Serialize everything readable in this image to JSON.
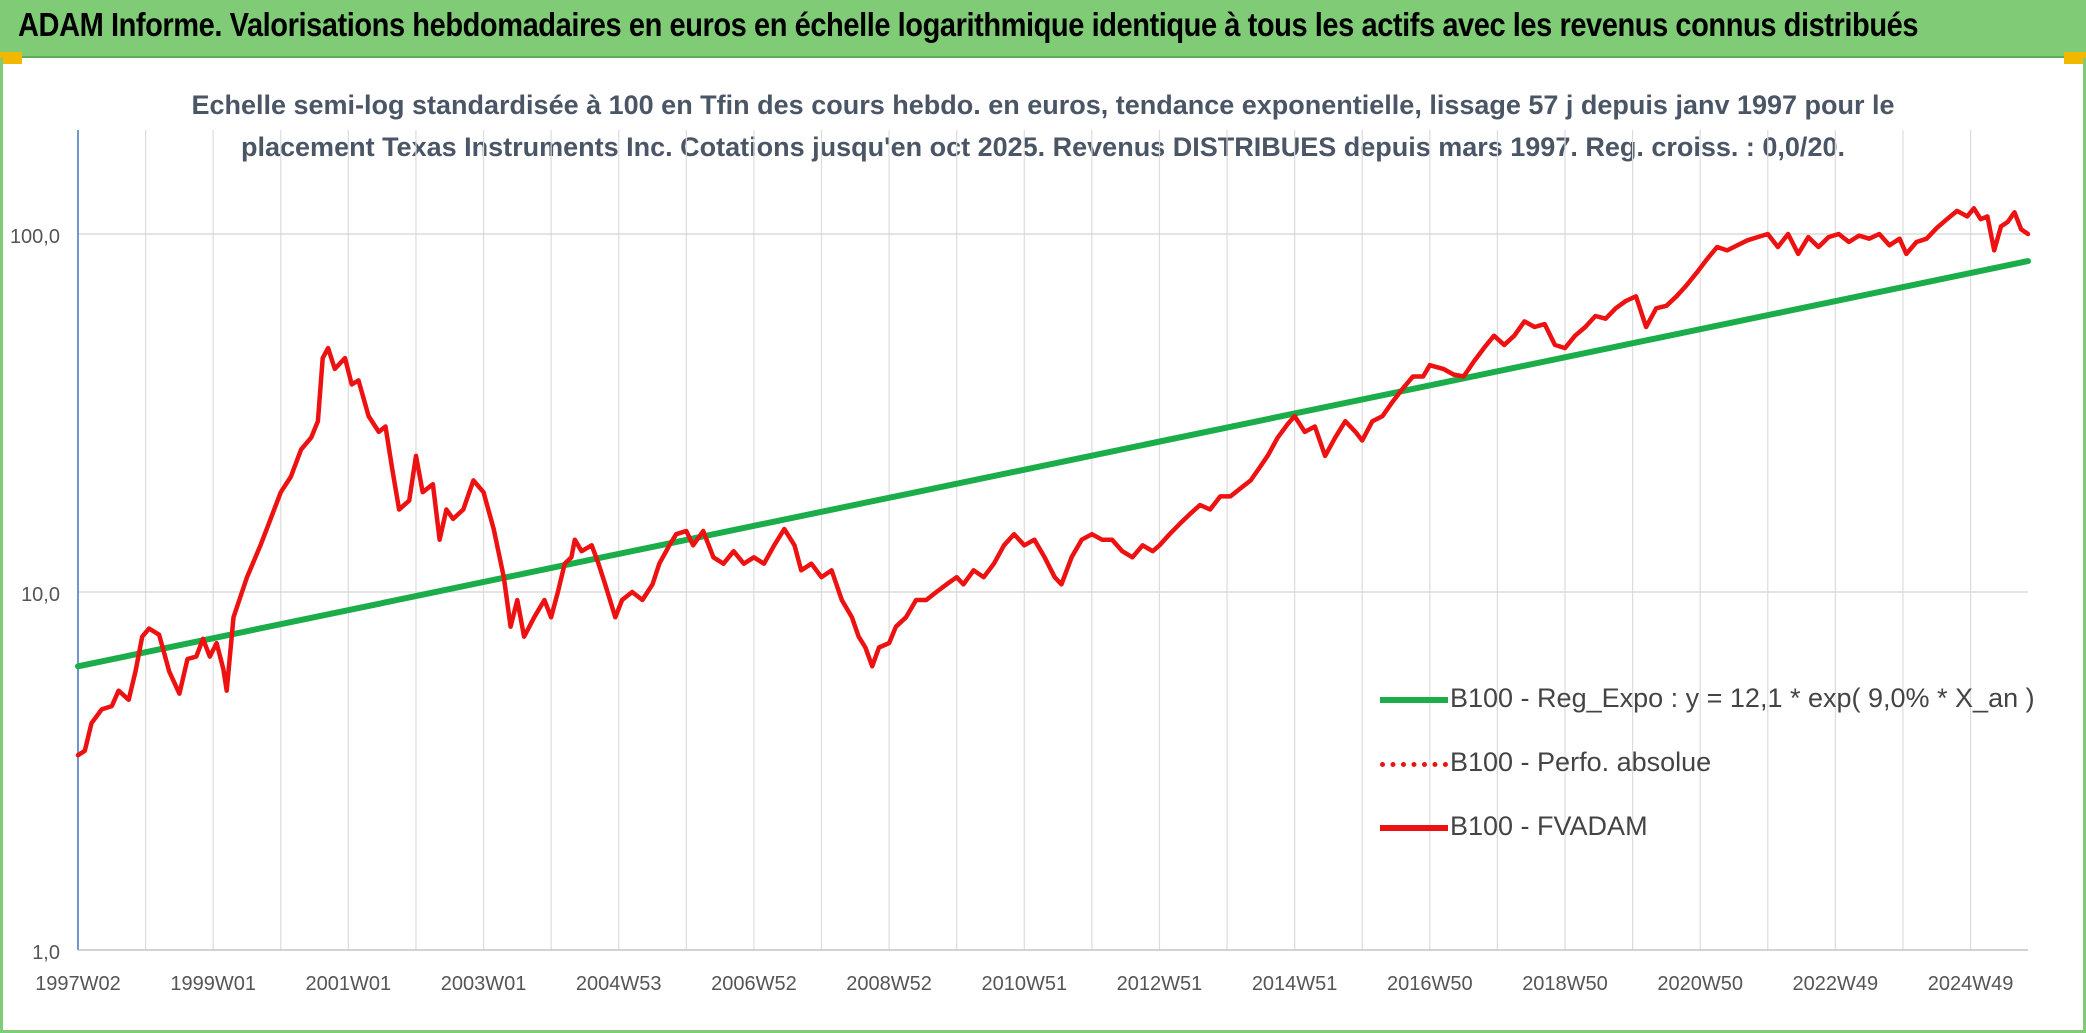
{
  "header": {
    "title": "ADAM Informe. Valorisations hebdomadaires en euros en échelle logarithmique identique à tous les actifs avec les revenus connus distribués"
  },
  "colors": {
    "header_bg": "#7fcb76",
    "regression": "#1aad4a",
    "fvadam": "#ee1111",
    "perfo": "#ee1111"
  },
  "chart_data": {
    "type": "line",
    "title_line1": "Echelle semi-log standardisée à 100 en Tfin des cours hebdo. en euros, tendance exponentielle, lissage 57 j depuis janv 1997 pour le",
    "title_line2": "placement Texas Instruments Inc. Cotations jusqu'en oct 2025. Revenus DISTRIBUES depuis mars 1997. Reg. croiss. : 0,0/20.",
    "y_scale": "log",
    "ylim": [
      1,
      200
    ],
    "y_ticks": [
      {
        "value": 1,
        "label": "1,0"
      },
      {
        "value": 10,
        "label": "10,0"
      },
      {
        "value": 100,
        "label": "100,0"
      }
    ],
    "xlim": [
      1997.0,
      2025.85
    ],
    "x_ticks": [
      {
        "x": 1997.0,
        "label": "1997W02"
      },
      {
        "x": 1999.0,
        "label": "1999W01"
      },
      {
        "x": 2001.0,
        "label": "2001W01"
      },
      {
        "x": 2003.0,
        "label": "2003W01"
      },
      {
        "x": 2005.0,
        "label": "2004W53"
      },
      {
        "x": 2007.0,
        "label": "2006W52"
      },
      {
        "x": 2009.0,
        "label": "2008W52"
      },
      {
        "x": 2011.0,
        "label": "2010W51"
      },
      {
        "x": 2013.0,
        "label": "2012W51"
      },
      {
        "x": 2015.0,
        "label": "2014W51"
      },
      {
        "x": 2017.0,
        "label": "2016W50"
      },
      {
        "x": 2019.0,
        "label": "2018W50"
      },
      {
        "x": 2021.0,
        "label": "2020W50"
      },
      {
        "x": 2023.0,
        "label": "2022W49"
      },
      {
        "x": 2025.0,
        "label": "2024W49"
      }
    ],
    "grid": "vertical minor + horizontal major",
    "legend_position": "lower-right",
    "series": [
      {
        "name": "B100 - Reg_Expo : y = 12,1 * exp( 9,0% *  X_an )",
        "style": "solid-thick",
        "color": "#1aad4a",
        "points": [
          [
            1997.0,
            6.2
          ],
          [
            2025.85,
            84
          ]
        ]
      },
      {
        "name": "B100 - Perfo. absolue",
        "style": "dotted",
        "color": "#ee1111",
        "points": []
      },
      {
        "name": "B100 - FVADAM",
        "style": "solid",
        "color": "#ee1111",
        "points": [
          [
            1997.0,
            3.5
          ],
          [
            1997.1,
            3.6
          ],
          [
            1997.2,
            4.3
          ],
          [
            1997.35,
            4.7
          ],
          [
            1997.5,
            4.8
          ],
          [
            1997.6,
            5.3
          ],
          [
            1997.75,
            5.0
          ],
          [
            1997.85,
            6.0
          ],
          [
            1997.95,
            7.5
          ],
          [
            1998.05,
            7.9
          ],
          [
            1998.2,
            7.6
          ],
          [
            1998.35,
            6.0
          ],
          [
            1998.5,
            5.2
          ],
          [
            1998.62,
            6.5
          ],
          [
            1998.75,
            6.6
          ],
          [
            1998.85,
            7.4
          ],
          [
            1998.95,
            6.6
          ],
          [
            1999.05,
            7.2
          ],
          [
            1999.15,
            6.1
          ],
          [
            1999.2,
            5.3
          ],
          [
            1999.3,
            8.5
          ],
          [
            1999.5,
            11.0
          ],
          [
            1999.7,
            13.5
          ],
          [
            1999.85,
            16.0
          ],
          [
            2000.0,
            19.0
          ],
          [
            2000.15,
            21.0
          ],
          [
            2000.3,
            25.0
          ],
          [
            2000.45,
            27.0
          ],
          [
            2000.55,
            30.0
          ],
          [
            2000.62,
            45.0
          ],
          [
            2000.7,
            48.0
          ],
          [
            2000.8,
            42.0
          ],
          [
            2000.95,
            45.0
          ],
          [
            2001.05,
            38.0
          ],
          [
            2001.15,
            39.0
          ],
          [
            2001.3,
            31.0
          ],
          [
            2001.45,
            28.0
          ],
          [
            2001.55,
            29.0
          ],
          [
            2001.65,
            22.0
          ],
          [
            2001.75,
            17.0
          ],
          [
            2001.9,
            18.0
          ],
          [
            2002.0,
            24.0
          ],
          [
            2002.1,
            19.0
          ],
          [
            2002.25,
            20.0
          ],
          [
            2002.35,
            14.0
          ],
          [
            2002.45,
            17.0
          ],
          [
            2002.55,
            16.0
          ],
          [
            2002.7,
            17.0
          ],
          [
            2002.85,
            20.5
          ],
          [
            2003.0,
            19.0
          ],
          [
            2003.15,
            15.0
          ],
          [
            2003.3,
            11.0
          ],
          [
            2003.4,
            8.0
          ],
          [
            2003.5,
            9.5
          ],
          [
            2003.6,
            7.5
          ],
          [
            2003.75,
            8.5
          ],
          [
            2003.9,
            9.5
          ],
          [
            2004.0,
            8.5
          ],
          [
            2004.1,
            10.0
          ],
          [
            2004.2,
            12.0
          ],
          [
            2004.3,
            12.5
          ],
          [
            2004.35,
            14.0
          ],
          [
            2004.45,
            13.0
          ],
          [
            2004.6,
            13.5
          ],
          [
            2004.7,
            12.0
          ],
          [
            2004.8,
            10.5
          ],
          [
            2004.95,
            8.5
          ],
          [
            2005.05,
            9.5
          ],
          [
            2005.2,
            10.0
          ],
          [
            2005.35,
            9.5
          ],
          [
            2005.5,
            10.5
          ],
          [
            2005.6,
            12.0
          ],
          [
            2005.75,
            13.5
          ],
          [
            2005.85,
            14.5
          ],
          [
            2006.0,
            14.8
          ],
          [
            2006.1,
            13.5
          ],
          [
            2006.25,
            14.8
          ],
          [
            2006.4,
            12.5
          ],
          [
            2006.55,
            12.0
          ],
          [
            2006.7,
            13.0
          ],
          [
            2006.85,
            12.0
          ],
          [
            2007.0,
            12.5
          ],
          [
            2007.15,
            12.0
          ],
          [
            2007.3,
            13.5
          ],
          [
            2007.45,
            15.0
          ],
          [
            2007.6,
            13.5
          ],
          [
            2007.7,
            11.5
          ],
          [
            2007.85,
            12.0
          ],
          [
            2008.0,
            11.0
          ],
          [
            2008.15,
            11.5
          ],
          [
            2008.3,
            9.5
          ],
          [
            2008.45,
            8.5
          ],
          [
            2008.55,
            7.5
          ],
          [
            2008.65,
            7.0
          ],
          [
            2008.75,
            6.2
          ],
          [
            2008.85,
            7.0
          ],
          [
            2009.0,
            7.2
          ],
          [
            2009.1,
            8.0
          ],
          [
            2009.25,
            8.5
          ],
          [
            2009.4,
            9.5
          ],
          [
            2009.55,
            9.5
          ],
          [
            2009.7,
            10.0
          ],
          [
            2009.85,
            10.5
          ],
          [
            2010.0,
            11.0
          ],
          [
            2010.1,
            10.5
          ],
          [
            2010.25,
            11.5
          ],
          [
            2010.4,
            11.0
          ],
          [
            2010.55,
            12.0
          ],
          [
            2010.7,
            13.5
          ],
          [
            2010.85,
            14.5
          ],
          [
            2011.0,
            13.5
          ],
          [
            2011.15,
            14.0
          ],
          [
            2011.3,
            12.5
          ],
          [
            2011.45,
            11.0
          ],
          [
            2011.55,
            10.5
          ],
          [
            2011.7,
            12.5
          ],
          [
            2011.85,
            14.0
          ],
          [
            2012.0,
            14.5
          ],
          [
            2012.15,
            14.0
          ],
          [
            2012.3,
            14.0
          ],
          [
            2012.45,
            13.0
          ],
          [
            2012.6,
            12.5
          ],
          [
            2012.75,
            13.5
          ],
          [
            2012.9,
            13.0
          ],
          [
            2013.0,
            13.5
          ],
          [
            2013.15,
            14.5
          ],
          [
            2013.3,
            15.5
          ],
          [
            2013.45,
            16.5
          ],
          [
            2013.6,
            17.5
          ],
          [
            2013.75,
            17.0
          ],
          [
            2013.9,
            18.5
          ],
          [
            2014.05,
            18.5
          ],
          [
            2014.2,
            19.5
          ],
          [
            2014.35,
            20.5
          ],
          [
            2014.5,
            22.5
          ],
          [
            2014.6,
            24.0
          ],
          [
            2014.75,
            27.0
          ],
          [
            2014.9,
            29.5
          ],
          [
            2015.0,
            31.0
          ],
          [
            2015.15,
            28.0
          ],
          [
            2015.3,
            29.0
          ],
          [
            2015.45,
            24.0
          ],
          [
            2015.6,
            27.0
          ],
          [
            2015.75,
            30.0
          ],
          [
            2015.9,
            28.0
          ],
          [
            2016.0,
            26.5
          ],
          [
            2016.15,
            30.0
          ],
          [
            2016.3,
            31.0
          ],
          [
            2016.45,
            34.0
          ],
          [
            2016.6,
            37.0
          ],
          [
            2016.75,
            40.0
          ],
          [
            2016.9,
            40.0
          ],
          [
            2017.0,
            43.0
          ],
          [
            2017.2,
            42.0
          ],
          [
            2017.35,
            40.5
          ],
          [
            2017.5,
            40.0
          ],
          [
            2017.65,
            44.0
          ],
          [
            2017.8,
            48.0
          ],
          [
            2017.95,
            52.0
          ],
          [
            2018.1,
            49.0
          ],
          [
            2018.25,
            52.0
          ],
          [
            2018.4,
            57.0
          ],
          [
            2018.55,
            55.0
          ],
          [
            2018.7,
            56.0
          ],
          [
            2018.85,
            49.0
          ],
          [
            2019.0,
            48.0
          ],
          [
            2019.15,
            52.0
          ],
          [
            2019.3,
            55.0
          ],
          [
            2019.45,
            59.0
          ],
          [
            2019.6,
            58.0
          ],
          [
            2019.75,
            62.0
          ],
          [
            2019.9,
            65.0
          ],
          [
            2020.05,
            67.0
          ],
          [
            2020.2,
            55.0
          ],
          [
            2020.35,
            62.0
          ],
          [
            2020.5,
            63.0
          ],
          [
            2020.65,
            67.0
          ],
          [
            2020.8,
            72.0
          ],
          [
            2020.95,
            78.0
          ],
          [
            2021.1,
            85.0
          ],
          [
            2021.25,
            92.0
          ],
          [
            2021.4,
            90.0
          ],
          [
            2021.55,
            93.0
          ],
          [
            2021.7,
            96.0
          ],
          [
            2021.85,
            98.0
          ],
          [
            2022.0,
            100.0
          ],
          [
            2022.15,
            92.0
          ],
          [
            2022.3,
            100.0
          ],
          [
            2022.45,
            88.0
          ],
          [
            2022.6,
            98.0
          ],
          [
            2022.75,
            92.0
          ],
          [
            2022.9,
            98.0
          ],
          [
            2023.05,
            100.0
          ],
          [
            2023.2,
            95.0
          ],
          [
            2023.35,
            99.0
          ],
          [
            2023.5,
            97.0
          ],
          [
            2023.65,
            100.0
          ],
          [
            2023.8,
            93.0
          ],
          [
            2023.95,
            97.0
          ],
          [
            2024.05,
            88.0
          ],
          [
            2024.2,
            95.0
          ],
          [
            2024.35,
            97.0
          ],
          [
            2024.5,
            104.0
          ],
          [
            2024.65,
            110.0
          ],
          [
            2024.8,
            116.0
          ],
          [
            2024.95,
            112.0
          ],
          [
            2025.05,
            118.0
          ],
          [
            2025.15,
            110.0
          ],
          [
            2025.25,
            112.0
          ],
          [
            2025.35,
            90.0
          ],
          [
            2025.45,
            105.0
          ],
          [
            2025.55,
            108.0
          ],
          [
            2025.65,
            115.0
          ],
          [
            2025.75,
            103.0
          ],
          [
            2025.85,
            100.0
          ]
        ]
      }
    ]
  }
}
